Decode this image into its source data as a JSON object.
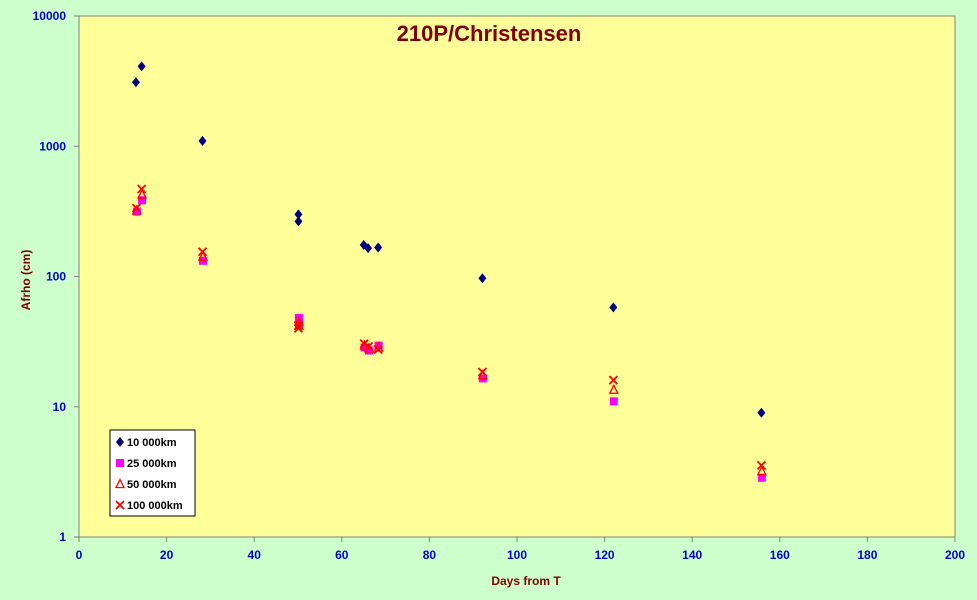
{
  "chart_data": {
    "type": "scatter",
    "title": "210P/Christensen",
    "xlabel": "Days from T",
    "ylabel": "Afrho (cm)",
    "xlim": [
      0,
      200
    ],
    "ylim": [
      1,
      10000
    ],
    "yscale": "log",
    "xticks": [
      "0",
      "20",
      "40",
      "60",
      "80",
      "100",
      "120",
      "140",
      "160",
      "180",
      "200"
    ],
    "yticks": [
      "1",
      "10",
      "100",
      "1000",
      "10000"
    ],
    "grid": false,
    "legend_position": "bottom-left",
    "colors": {
      "background": "#ccffcc",
      "plot_area": "#ffff99",
      "title": "#800000",
      "tick_labels": "#0000cc"
    },
    "series": [
      {
        "name": "10 000km",
        "marker": "diamond",
        "color": "#000080",
        "points": [
          [
            13,
            3100
          ],
          [
            14.3,
            4100
          ],
          [
            28.2,
            1100
          ],
          [
            50.1,
            300
          ],
          [
            50.1,
            265
          ],
          [
            65,
            175
          ],
          [
            66,
            165
          ],
          [
            68.3,
            167
          ],
          [
            92.1,
            97
          ],
          [
            122,
            58
          ],
          [
            155.8,
            9
          ]
        ]
      },
      {
        "name": "25 000km",
        "marker": "square",
        "color": "#ff00ff",
        "points": [
          [
            13.2,
            315
          ],
          [
            14.4,
            385
          ],
          [
            28.3,
            132
          ],
          [
            50.2,
            48
          ],
          [
            50.2,
            44
          ],
          [
            65.2,
            28.5
          ],
          [
            66.2,
            27
          ],
          [
            68.4,
            29.5
          ],
          [
            92.2,
            16.5
          ],
          [
            122.1,
            11
          ],
          [
            155.9,
            2.85
          ]
        ]
      },
      {
        "name": "50 000km",
        "marker": "triangle",
        "color": "#ff0000",
        "points": [
          [
            13.2,
            322
          ],
          [
            14.4,
            425
          ],
          [
            28.3,
            142
          ],
          [
            50.2,
            45
          ],
          [
            50.2,
            42
          ],
          [
            65.2,
            29.5
          ],
          [
            66.2,
            28
          ],
          [
            68.4,
            28.5
          ],
          [
            92.2,
            17.5
          ],
          [
            122.1,
            13.5
          ],
          [
            155.9,
            3.2
          ]
        ]
      },
      {
        "name": "100 000km",
        "marker": "x",
        "color": "#ff0000",
        "points": [
          [
            13.1,
            335
          ],
          [
            14.3,
            470
          ],
          [
            28.2,
            155
          ],
          [
            50.1,
            42
          ],
          [
            50.1,
            40
          ],
          [
            65.1,
            30.5
          ],
          [
            66.1,
            29
          ],
          [
            68.3,
            27.5
          ],
          [
            92.1,
            18.5
          ],
          [
            122,
            16
          ],
          [
            155.8,
            3.55
          ]
        ]
      }
    ]
  }
}
